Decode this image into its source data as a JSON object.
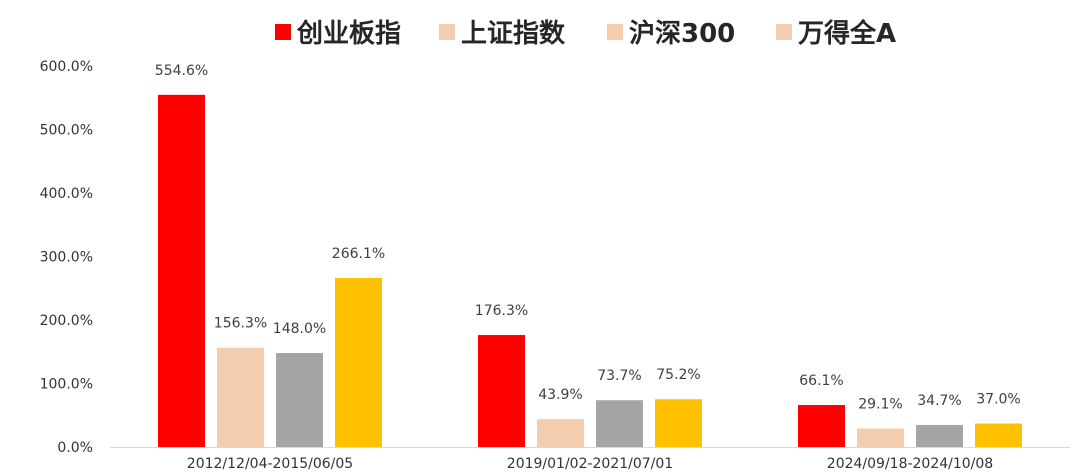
{
  "chart_data": {
    "type": "bar",
    "title": "",
    "xlabel": "",
    "ylabel": "",
    "ylim": [
      0,
      600
    ],
    "y_ticks": [
      0,
      100,
      200,
      300,
      400,
      500,
      600
    ],
    "y_tick_labels": [
      "0.0%",
      "100.0%",
      "200.0%",
      "300.0%",
      "400.0%",
      "500.0%",
      "600.0%"
    ],
    "grid": false,
    "legend_position": "top",
    "categories": [
      "2012/12/04-2015/06/05",
      "2019/01/02-2021/07/01",
      "2024/09/18-2024/10/08"
    ],
    "series": [
      {
        "name": "创业板指",
        "color": "#ff0000",
        "legend_color": "#ff0000",
        "values": [
          554.6,
          176.3,
          66.1
        ],
        "labels": [
          "554.6%",
          "176.3%",
          "66.1%"
        ]
      },
      {
        "name": "上证指数",
        "color": "#f4ccae",
        "legend_color": "#f4ccae",
        "values": [
          156.3,
          43.9,
          29.1
        ],
        "labels": [
          "156.3%",
          "43.9%",
          "29.1%"
        ]
      },
      {
        "name": "沪深300",
        "color": "#a5a5a5",
        "legend_color": "#f4ccae",
        "values": [
          148.0,
          73.7,
          34.7
        ],
        "labels": [
          "148.0%",
          "73.7%",
          "34.7%"
        ]
      },
      {
        "name": "万得全A",
        "color": "#ffc000",
        "legend_color": "#f4ccae",
        "values": [
          266.1,
          75.2,
          37.0
        ],
        "labels": [
          "266.1%",
          "75.2%",
          "37.0%"
        ]
      }
    ]
  }
}
